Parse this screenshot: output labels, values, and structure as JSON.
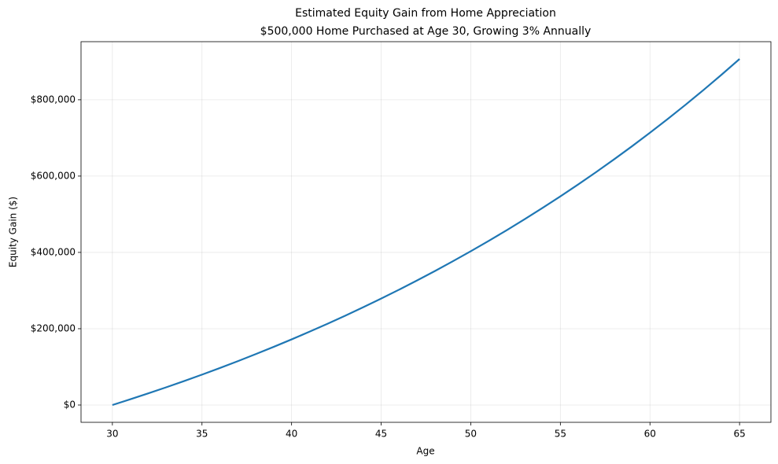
{
  "chart_data": {
    "type": "line",
    "title": "Estimated Equity Gain from Home Appreciation",
    "subtitle": "$500,000 Home Purchased at Age 30, Growing 3% Annually",
    "x_label": "Age",
    "y_label": "Equity Gain ($)",
    "x": [
      30,
      31,
      32,
      33,
      34,
      35,
      36,
      37,
      38,
      39,
      40,
      41,
      42,
      43,
      44,
      45,
      46,
      47,
      48,
      49,
      50,
      51,
      52,
      53,
      54,
      55,
      56,
      57,
      58,
      59,
      60,
      61,
      62,
      63,
      64,
      65
    ],
    "series": [
      {
        "color": "#1f77b4",
        "values": [
          0,
          15000,
          30450,
          46364,
          62754,
          79637,
          97026,
          114937,
          133385,
          152387,
          171958,
          192117,
          212880,
          234267,
          256295,
          278984,
          302353,
          326424,
          351217,
          376753,
          403056,
          430148,
          458052,
          486794,
          516397,
          546889,
          578296,
          610645,
          643964,
          678283,
          713631,
          750040,
          787541,
          826167,
          865953,
          906931
        ]
      }
    ],
    "xlim": [
      28.25,
      66.75
    ],
    "xticks": [
      30,
      35,
      40,
      45,
      50,
      55,
      60,
      65
    ],
    "ylim": [
      -45347,
      952278
    ],
    "yticks": [
      {
        "value": 0,
        "label": "$0"
      },
      {
        "value": 200000,
        "label": "$200,000"
      },
      {
        "value": 400000,
        "label": "$400,000"
      },
      {
        "value": 600000,
        "label": "$600,000"
      },
      {
        "value": 800000,
        "label": "$800,000"
      }
    ],
    "grid": true
  }
}
